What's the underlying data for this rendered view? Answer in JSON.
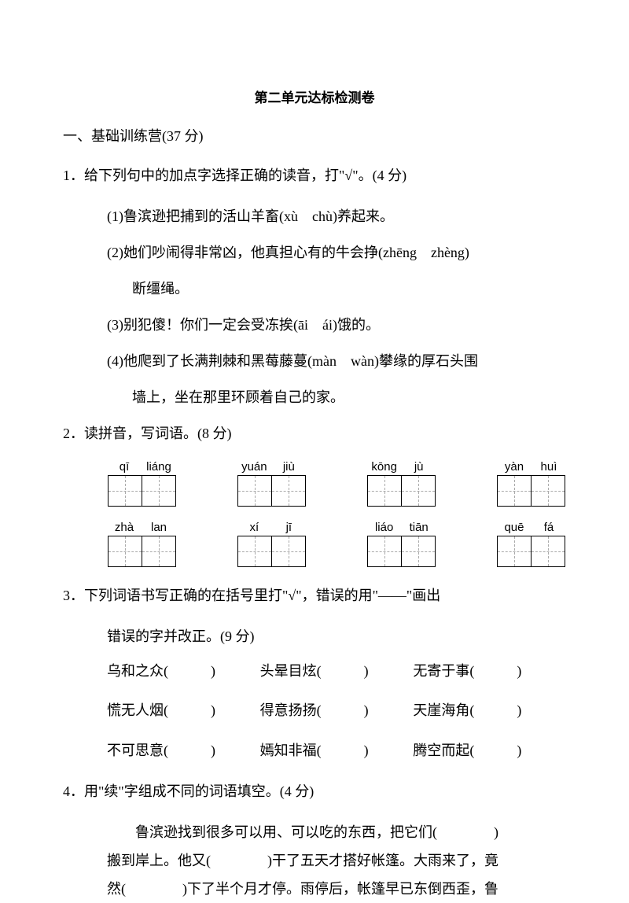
{
  "title": "第二单元达标检测卷",
  "section1": "一、基础训练营(37 分)",
  "q1": {
    "stem": "1．给下列句中的加点字选择正确的读音，打\"√\"。(4 分)",
    "s1": "(1)鲁滨逊把捕到的活山羊畜(xù　chù)养起来。",
    "s2": "(2)她们吵闹得非常凶，他真担心有的牛会挣(zhēng　zhèng)",
    "s2b": "断缰绳。",
    "s3": "(3)别犯傻！你们一定会受冻挨(āi　ái)饿的。",
    "s4": "(4)他爬到了长满荆棘和黑莓藤蔓(màn　wàn)攀缘的厚石头围",
    "s4b": "墙上，坐在那里环顾着自己的家。"
  },
  "q2": {
    "stem": "2．读拼音，写词语。(8 分)",
    "row1": [
      [
        "qī",
        "liáng"
      ],
      [
        "yuán",
        "jiù"
      ],
      [
        "kōng",
        "jù"
      ],
      [
        "yàn",
        "huì"
      ]
    ],
    "row2": [
      [
        "zhà",
        "lan"
      ],
      [
        "xí",
        "jī"
      ],
      [
        "liáo",
        "tiān"
      ],
      [
        "quē",
        "fá"
      ]
    ]
  },
  "q3": {
    "stem_a": "3．下列词语书写正确的在括号里打\"√\"，错误的用\"——\"画出",
    "stem_b": "错误的字并改正。(9 分)",
    "rows": [
      [
        "乌和之众(　　　)",
        "头晕目炫(　　　)",
        "无寄于事(　　　)"
      ],
      [
        "慌无人烟(　　　)",
        "得意扬扬(　　　)",
        "天崖海角(　　　)"
      ],
      [
        "不可思意(　　　)",
        "嫣知非福(　　　)",
        "腾空而起(　　　)"
      ]
    ]
  },
  "q4": {
    "stem": "4．用\"续\"字组成不同的词语填空。(4 分)",
    "p1": "鲁滨逊找到很多可以用、可以吃的东西，把它们(　　　　)",
    "p2": "搬到岸上。他又(　　　　)干了五天才搭好帐篷。大雨来了，竟",
    "p3": "然(　　　　)下了半个月才停。雨停后，帐篷早已东倒西歪，鲁"
  }
}
